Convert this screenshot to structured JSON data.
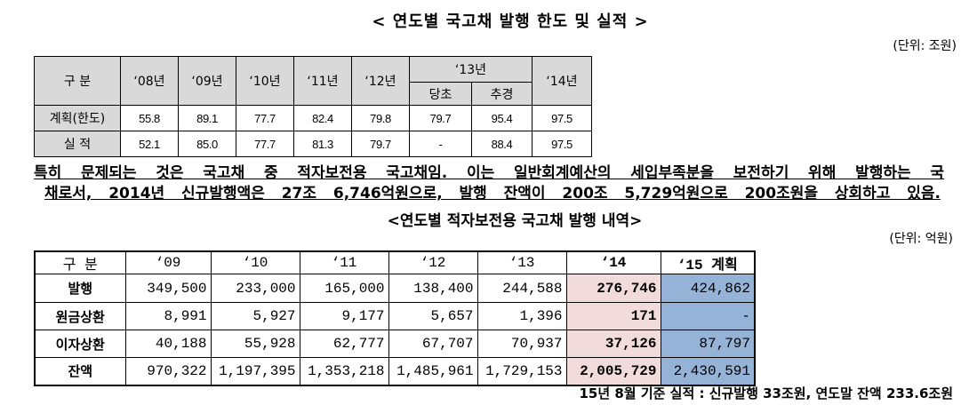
{
  "title1": "< 연도별 국고채 발행 한도 및 실적 >",
  "unit1": "(단위: 조원)",
  "table1": {
    "header": {
      "label": "구 분",
      "years": [
        "‘08년",
        "‘09년",
        "‘10년",
        "‘11년",
        "‘12년"
      ],
      "group": "‘13년",
      "sub": [
        "당초",
        "추경"
      ],
      "last": "‘14년"
    },
    "rows": [
      {
        "label": "계획(한도)",
        "values": [
          "55.8",
          "89.1",
          "77.7",
          "82.4",
          "79.8",
          "79.7",
          "95.4",
          "97.5"
        ]
      },
      {
        "label": "실 적",
        "values": [
          "52.1",
          "85.0",
          "77.7",
          "81.3",
          "79.7",
          "-",
          "88.4",
          "97.5"
        ]
      }
    ]
  },
  "paragraph": {
    "lines": [
      "특히 문제되는 것은 국고채 중 적자보전용 국고채임. 이는 일반회계예산의 세입부족분을 보전하기 위해 발행하는 국",
      "채로서, 2014년 신규발행액은 27조 6,746억원으로, 발행 잔액이 200조 5,729억원으로 200조원을 상회하고 있음."
    ]
  },
  "title2": "<연도별 적자보전용 국고채 발행 내역>",
  "unit2": "(단위: 억원)",
  "table2": {
    "header": [
      "구 분",
      "‘09",
      "‘10",
      "‘11",
      "‘12",
      "‘13",
      "‘14",
      "‘15 계획"
    ],
    "rows": [
      {
        "label": "발행",
        "values": [
          "349,500",
          "233,000",
          "165,000",
          "138,400",
          "244,588",
          "276,746",
          "424,862"
        ]
      },
      {
        "label": "원금상환",
        "values": [
          "8,991",
          "5,927",
          "9,177",
          "5,657",
          "1,396",
          "171",
          "-"
        ]
      },
      {
        "label": "이자상환",
        "values": [
          "40,188",
          "55,928",
          "62,777",
          "67,707",
          "70,937",
          "37,126",
          "87,797"
        ]
      },
      {
        "label": "잔액",
        "values": [
          "970,322",
          "1,197,395",
          "1,353,218",
          "1,485,961",
          "1,729,153",
          "2,005,729",
          "2,430,591"
        ]
      }
    ]
  },
  "note": "15년 8월 기준 실적 : 신규발행 33조원, 연도말 잔액 233.6조원",
  "colors": {
    "header_gray": "#D9D9D9",
    "highlight_2014": "#F2DCDB",
    "highlight_2015": "#95B3D7"
  }
}
